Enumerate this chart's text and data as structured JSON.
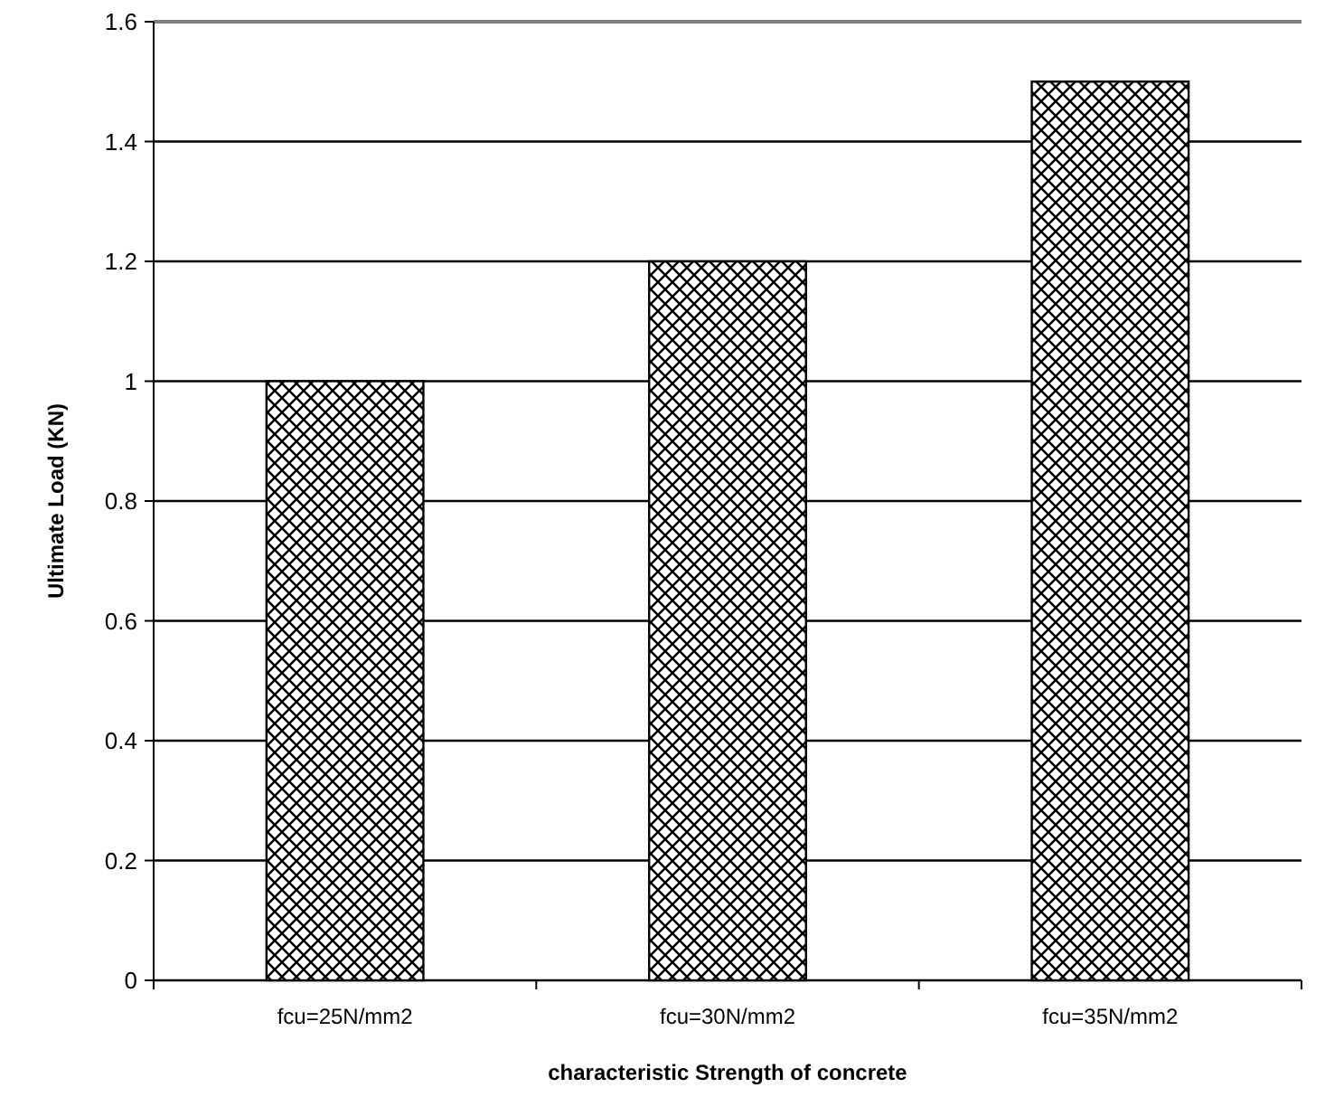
{
  "chart_data": {
    "type": "bar",
    "xlabel": "characteristic Strength of concrete",
    "ylabel": "Ultimate Load (KN)",
    "categories": [
      "fcu=25N/mm2",
      "fcu=30N/mm2",
      "fcu=35N/mm2"
    ],
    "values": [
      1.0,
      1.2,
      1.5
    ],
    "color": "#000000",
    "ylim": [
      0,
      1.6
    ],
    "yticks": [
      0,
      0.2,
      0.4,
      0.6,
      0.8,
      1,
      1.2,
      1.4,
      1.6
    ],
    "grid": "y"
  }
}
